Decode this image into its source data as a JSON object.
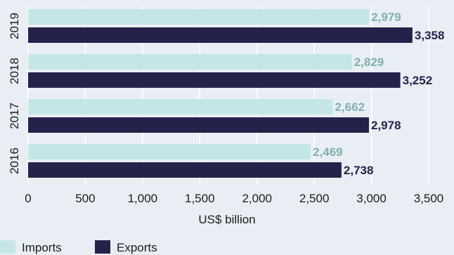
{
  "chart_data": {
    "type": "bar",
    "orientation": "horizontal",
    "categories": [
      "2019",
      "2018",
      "2017",
      "2016"
    ],
    "series": [
      {
        "name": "Imports",
        "color": "#c5e6e6",
        "label_color": "#7fb0b0",
        "values": [
          2979,
          2829,
          2662,
          2469
        ],
        "labels": [
          "2,979",
          "2,829",
          "2,662",
          "2,469"
        ]
      },
      {
        "name": "Exports",
        "color": "#24224a",
        "label_color": "#24224a",
        "values": [
          3358,
          3252,
          2978,
          2738
        ],
        "labels": [
          "3,358",
          "3,252",
          "2,978",
          "2,738"
        ]
      }
    ],
    "xlabel": "US$ billion",
    "xlim": [
      0,
      3500
    ],
    "xticks": [
      0,
      500,
      1000,
      1500,
      2000,
      2500,
      3000,
      3500
    ],
    "xtick_labels": [
      "0",
      "500",
      "1,000",
      "1,500",
      "2,000",
      "2,500",
      "3,000",
      "3,500"
    ],
    "grid": true,
    "legend_position": "bottom-left"
  }
}
